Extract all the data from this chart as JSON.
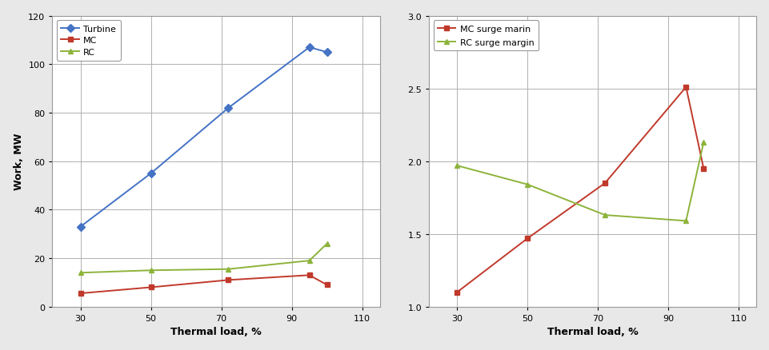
{
  "chart1": {
    "x": [
      30,
      50,
      72,
      95,
      100
    ],
    "turbine": [
      33,
      55,
      82,
      107,
      105
    ],
    "MC": [
      5.5,
      8,
      11,
      13,
      9
    ],
    "RC": [
      14,
      15,
      15.5,
      19,
      26
    ],
    "ylabel": "Work, MW",
    "xlabel": "Thermal load, %",
    "ylim": [
      0,
      120
    ],
    "yticks": [
      0,
      20,
      40,
      60,
      80,
      100,
      120
    ],
    "xticks": [
      30,
      50,
      70,
      90,
      110
    ],
    "xlim": [
      22,
      115
    ],
    "turbine_color": "#4472C4",
    "MC_color": "#C0392B",
    "RC_color": "#8DB33A",
    "turbine_marker": "D",
    "MC_marker": "s",
    "RC_marker": "^",
    "turbine_label": "Turbine",
    "MC_label": "MC",
    "RC_label": "RC"
  },
  "chart2": {
    "x": [
      30,
      50,
      72,
      95,
      100
    ],
    "MC_surge": [
      1.1,
      1.47,
      1.85,
      2.51,
      1.95
    ],
    "RC_surge": [
      1.97,
      1.84,
      1.63,
      1.59,
      2.13
    ],
    "xlabel": "Thermal load, %",
    "ylim": [
      1.0,
      3.0
    ],
    "yticks": [
      1.0,
      1.5,
      2.0,
      2.5,
      3.0
    ],
    "xticks": [
      30,
      50,
      70,
      90,
      110
    ],
    "xlim": [
      22,
      115
    ],
    "MC_color": "#C0392B",
    "RC_color": "#8DB33A",
    "MC_marker": "s",
    "RC_marker": "^",
    "MC_label": "MC surge marin",
    "RC_label": "RC surge margin"
  },
  "fig_facecolor": "#E8E8E8",
  "plot_facecolor": "#FFFFFF",
  "grid_color": "#B0B0B0",
  "spine_color": "#999999",
  "tick_labelsize": 8,
  "axis_labelsize": 9,
  "legend_fontsize": 8,
  "line_width": 1.4,
  "marker_size": 5
}
